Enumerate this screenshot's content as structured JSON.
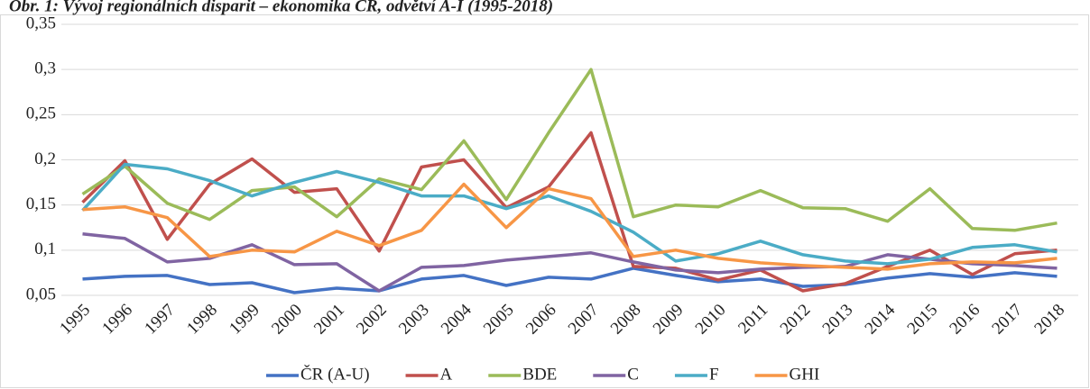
{
  "chart_data": {
    "type": "line",
    "title": "Obr. 1: Vývoj regionálních disparit – ekonomika ČR, odvětví A-I (1995-2018)",
    "categories": [
      "1995",
      "1996",
      "1997",
      "1998",
      "1999",
      "2000",
      "2001",
      "2002",
      "2003",
      "2004",
      "2005",
      "2006",
      "2007",
      "2008",
      "2009",
      "2010",
      "2011",
      "2012",
      "2013",
      "2014",
      "2015",
      "2016",
      "2017",
      "2018"
    ],
    "series": [
      {
        "name": "ČR (A-U)",
        "color": "#4472c4",
        "values": [
          0.068,
          0.071,
          0.072,
          0.062,
          0.064,
          0.053,
          0.058,
          0.055,
          0.068,
          0.072,
          0.061,
          0.07,
          0.068,
          0.08,
          0.072,
          0.065,
          0.068,
          0.06,
          0.062,
          0.069,
          0.074,
          0.07,
          0.075,
          0.071
        ]
      },
      {
        "name": "A",
        "color": "#c0504d",
        "values": [
          0.153,
          0.199,
          0.112,
          0.173,
          0.201,
          0.164,
          0.168,
          0.099,
          0.192,
          0.2,
          0.147,
          0.17,
          0.23,
          0.082,
          0.08,
          0.067,
          0.078,
          0.055,
          0.063,
          0.082,
          0.1,
          0.073,
          0.096,
          0.1
        ]
      },
      {
        "name": "BDE",
        "color": "#9bbb59",
        "values": [
          0.162,
          0.193,
          0.152,
          0.134,
          0.166,
          0.17,
          0.137,
          0.179,
          0.167,
          0.221,
          0.156,
          0.23,
          0.3,
          0.137,
          0.15,
          0.148,
          0.166,
          0.147,
          0.146,
          0.132,
          0.168,
          0.124,
          0.122,
          0.13
        ]
      },
      {
        "name": "C",
        "color": "#8064a2",
        "values": [
          0.118,
          0.113,
          0.087,
          0.091,
          0.106,
          0.084,
          0.085,
          0.055,
          0.081,
          0.083,
          0.089,
          0.093,
          0.097,
          0.087,
          0.078,
          0.075,
          0.079,
          0.081,
          0.082,
          0.095,
          0.09,
          0.085,
          0.083,
          0.08
        ]
      },
      {
        "name": "F",
        "color": "#4bacc6",
        "values": [
          0.144,
          0.195,
          0.19,
          0.177,
          0.16,
          0.175,
          0.187,
          0.175,
          0.16,
          0.16,
          0.146,
          0.16,
          0.143,
          0.12,
          0.088,
          0.096,
          0.11,
          0.095,
          0.088,
          0.085,
          0.09,
          0.103,
          0.106,
          0.098
        ]
      },
      {
        "name": "GHI",
        "color": "#f79646",
        "values": [
          0.145,
          0.148,
          0.136,
          0.093,
          0.1,
          0.098,
          0.121,
          0.105,
          0.122,
          0.173,
          0.125,
          0.168,
          0.157,
          0.093,
          0.1,
          0.091,
          0.086,
          0.083,
          0.081,
          0.079,
          0.085,
          0.087,
          0.086,
          0.091
        ]
      }
    ],
    "ylim": [
      0.05,
      0.35
    ],
    "yticks": [
      {
        "value": 0.05,
        "label": "0,05"
      },
      {
        "value": 0.1,
        "label": "0,1"
      },
      {
        "value": 0.15,
        "label": "0,15"
      },
      {
        "value": 0.2,
        "label": "0,2"
      },
      {
        "value": 0.25,
        "label": "0,25"
      },
      {
        "value": 0.3,
        "label": "0,3"
      },
      {
        "value": 0.35,
        "label": "0,35"
      }
    ],
    "grid": true,
    "legend": "bottom"
  }
}
